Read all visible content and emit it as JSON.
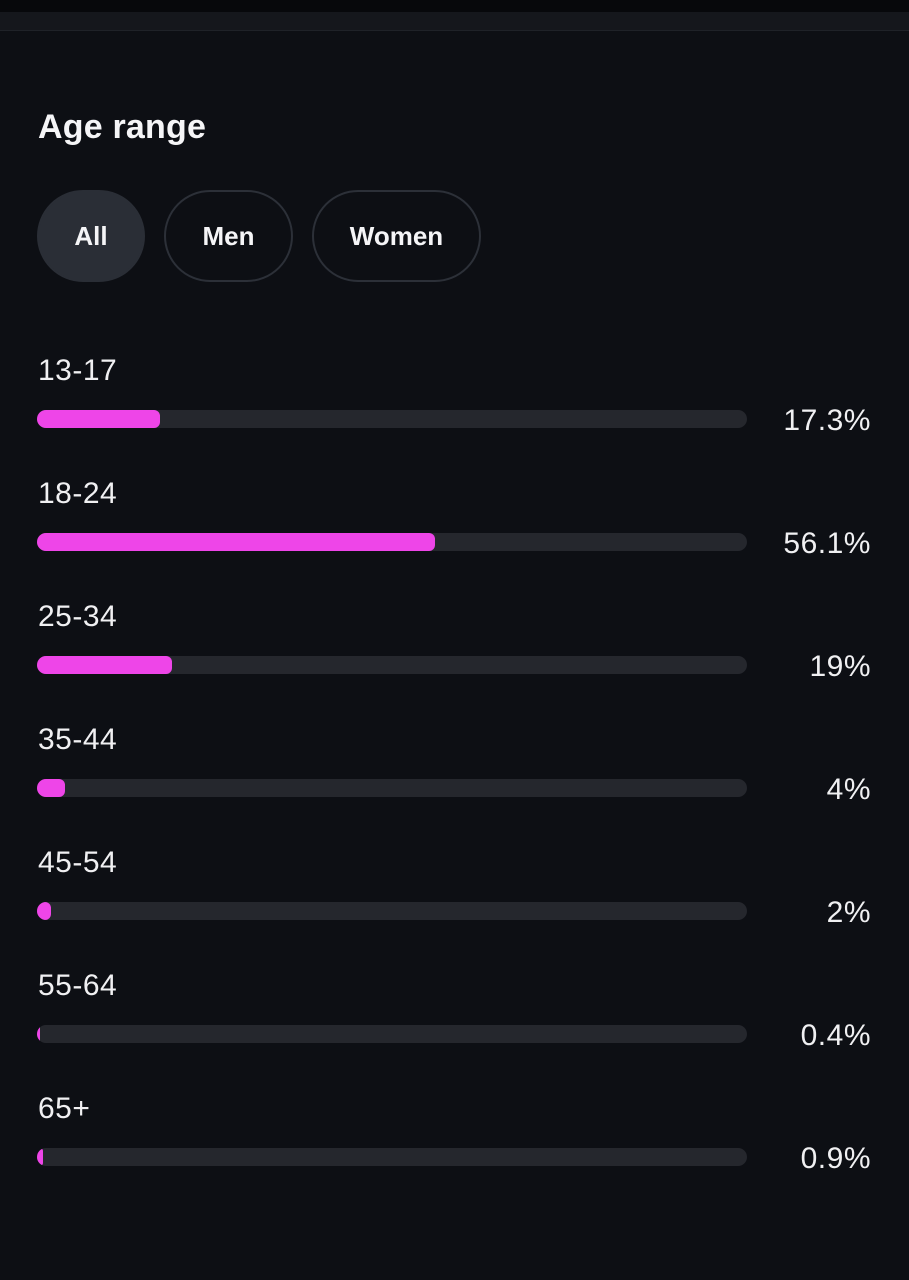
{
  "section": {
    "title": "Age range"
  },
  "filters": {
    "selected": "All",
    "options": [
      {
        "label": "All"
      },
      {
        "label": "Men"
      },
      {
        "label": "Women"
      }
    ]
  },
  "colors": {
    "bar_fill": "#ee45e8",
    "bar_track": "#25272d",
    "background": "#0d0f14",
    "chip_selected": "#2a2e36"
  },
  "age_rows": [
    {
      "label": "13-17",
      "value_text": "17.3%",
      "percent": 17.3
    },
    {
      "label": "18-24",
      "value_text": "56.1%",
      "percent": 56.1
    },
    {
      "label": "25-34",
      "value_text": "19%",
      "percent": 19
    },
    {
      "label": "35-44",
      "value_text": "4%",
      "percent": 4
    },
    {
      "label": "45-54",
      "value_text": "2%",
      "percent": 2
    },
    {
      "label": "55-64",
      "value_text": "0.4%",
      "percent": 0.4
    },
    {
      "label": "65+",
      "value_text": "0.9%",
      "percent": 0.9
    }
  ]
}
